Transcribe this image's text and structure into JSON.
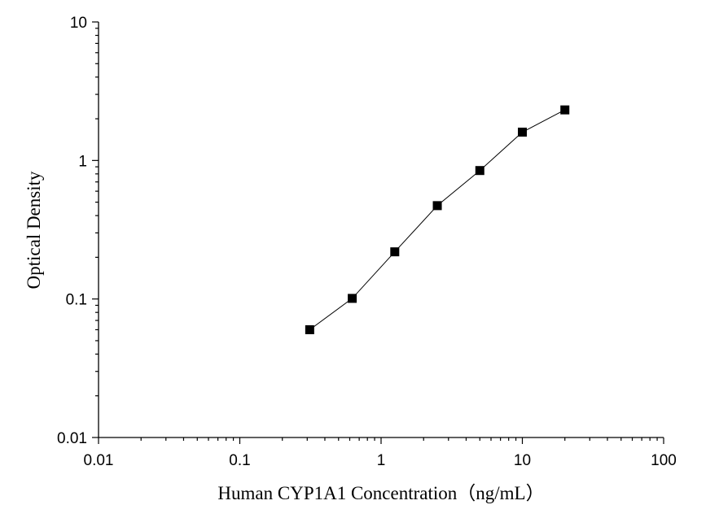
{
  "chart_data": {
    "type": "scatter",
    "xlabel": "Human CYP1A1 Concentration（ng/mL）",
    "ylabel": "Optical Density",
    "xscale": "log",
    "yscale": "log",
    "xlim": [
      0.01,
      100
    ],
    "ylim": [
      0.01,
      10
    ],
    "x_ticks": [
      "0.01",
      "0.1",
      "1",
      "10",
      "100"
    ],
    "y_ticks": [
      "0.01",
      "0.1",
      "1",
      "10"
    ],
    "x_tick_values": [
      0.01,
      0.1,
      1,
      10,
      100
    ],
    "y_tick_values": [
      0.01,
      0.1,
      1,
      10
    ],
    "grid": false,
    "marker": "square",
    "connected": true,
    "series": [
      {
        "x": [
          0.3125,
          0.625,
          1.25,
          2.5,
          5,
          10,
          20
        ],
        "y": [
          0.06,
          0.101,
          0.219,
          0.472,
          0.846,
          1.602,
          2.318
        ]
      }
    ],
    "colors": {
      "marker": "#000000",
      "line": "#000000",
      "axis": "#000000"
    }
  }
}
